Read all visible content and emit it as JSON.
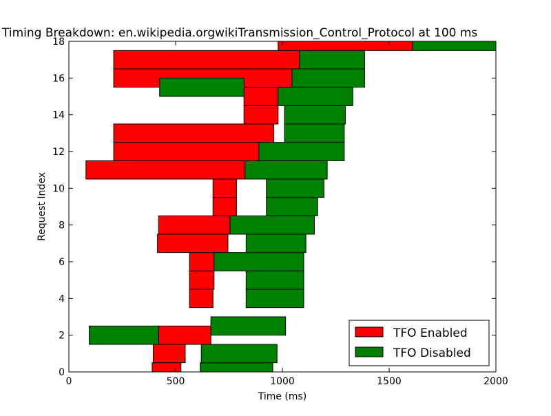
{
  "chart_data": {
    "type": "bar",
    "orientation": "horizontal-floating",
    "title": "Timing Breakdown: en.wikipedia.orgwikiTransmission_Control_Protocol at 100 ms",
    "xlabel": "Time (ms)",
    "ylabel": "Request Index",
    "xlim": [
      0,
      2000
    ],
    "ylim": [
      0,
      18
    ],
    "xticks": [
      "0",
      "500",
      "1000",
      "1500",
      "2000"
    ],
    "yticks": [
      "0",
      "2",
      "4",
      "6",
      "8",
      "10",
      "12",
      "14",
      "16",
      "18"
    ],
    "legend_position": "bottom-right",
    "series": [
      {
        "name": "TFO Enabled",
        "color": "#ff0000",
        "bars": [
          {
            "index": 0,
            "start": 390,
            "end": 525
          },
          {
            "index": 1,
            "start": 395,
            "end": 545
          },
          {
            "index": 2,
            "start": 420,
            "end": 665
          },
          {
            "index": 4,
            "start": 565,
            "end": 675
          },
          {
            "index": 5,
            "start": 565,
            "end": 680
          },
          {
            "index": 6,
            "start": 565,
            "end": 680
          },
          {
            "index": 7,
            "start": 415,
            "end": 745
          },
          {
            "index": 8,
            "start": 420,
            "end": 755
          },
          {
            "index": 9,
            "start": 675,
            "end": 785
          },
          {
            "index": 10,
            "start": 675,
            "end": 785
          },
          {
            "index": 11,
            "start": 80,
            "end": 825
          },
          {
            "index": 12,
            "start": 210,
            "end": 890
          },
          {
            "index": 13,
            "start": 210,
            "end": 960
          },
          {
            "index": 14,
            "start": 820,
            "end": 980
          },
          {
            "index": 15,
            "start": 820,
            "end": 980
          },
          {
            "index": 16,
            "start": 210,
            "end": 1045
          },
          {
            "index": 17,
            "start": 210,
            "end": 1080
          },
          {
            "index": 18,
            "start": 980,
            "end": 1610
          }
        ]
      },
      {
        "name": "TFO Disabled",
        "color": "#008000",
        "bars": [
          {
            "index": 0,
            "start": 615,
            "end": 955
          },
          {
            "index": 1,
            "start": 620,
            "end": 975
          },
          {
            "index": 2,
            "start": 95,
            "end": 420
          },
          {
            "index": 2.5,
            "start": 665,
            "end": 1015
          },
          {
            "index": 4,
            "start": 830,
            "end": 1100
          },
          {
            "index": 5,
            "start": 830,
            "end": 1100
          },
          {
            "index": 6,
            "start": 680,
            "end": 1100
          },
          {
            "index": 7,
            "start": 830,
            "end": 1110
          },
          {
            "index": 8,
            "start": 755,
            "end": 1150
          },
          {
            "index": 9,
            "start": 925,
            "end": 1165
          },
          {
            "index": 10,
            "start": 925,
            "end": 1195
          },
          {
            "index": 11,
            "start": 825,
            "end": 1210
          },
          {
            "index": 12,
            "start": 890,
            "end": 1290
          },
          {
            "index": 13,
            "start": 1010,
            "end": 1290
          },
          {
            "index": 14,
            "start": 1010,
            "end": 1295
          },
          {
            "index": 15,
            "start": 980,
            "end": 1330
          },
          {
            "index": 15.5,
            "start": 425,
            "end": 820
          },
          {
            "index": 16,
            "start": 1045,
            "end": 1385
          },
          {
            "index": 17,
            "start": 1080,
            "end": 1385
          },
          {
            "index": 18,
            "start": 1610,
            "end": 2000
          }
        ]
      }
    ]
  }
}
